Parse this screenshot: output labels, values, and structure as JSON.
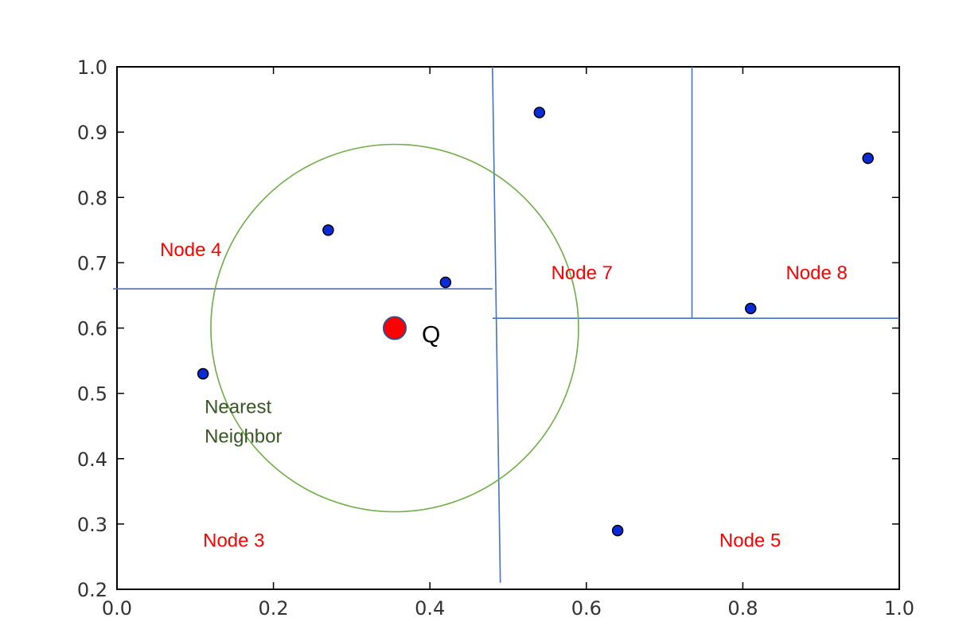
{
  "chart_data": {
    "type": "scatter",
    "xlim": [
      0.0,
      1.0
    ],
    "ylim": [
      0.2,
      1.0
    ],
    "x_ticks": [
      "0.0",
      "0.2",
      "0.4",
      "0.6",
      "0.8",
      "1.0"
    ],
    "y_ticks": [
      "0.2",
      "0.3",
      "0.4",
      "0.5",
      "0.6",
      "0.7",
      "0.8",
      "0.9",
      "1.0"
    ],
    "grid": false,
    "points": [
      {
        "x": 0.11,
        "y": 0.53
      },
      {
        "x": 0.27,
        "y": 0.75
      },
      {
        "x": 0.42,
        "y": 0.67
      },
      {
        "x": 0.54,
        "y": 0.93
      },
      {
        "x": 0.64,
        "y": 0.29
      },
      {
        "x": 0.81,
        "y": 0.63
      },
      {
        "x": 0.96,
        "y": 0.86
      }
    ],
    "query": {
      "x": 0.355,
      "y": 0.6,
      "label": "Q"
    },
    "search_radius": 0.235,
    "splits": [
      {
        "x1": -0.005,
        "y1": 0.66,
        "x2": 0.48,
        "y2": 0.66
      },
      {
        "x1": 0.48,
        "y1": 1.0,
        "x2": 0.49,
        "y2": 0.21
      },
      {
        "x1": 0.48,
        "y1": 0.615,
        "x2": 1.0,
        "y2": 0.615
      },
      {
        "x1": 0.735,
        "y1": 1.0,
        "x2": 0.735,
        "y2": 0.615
      }
    ],
    "region_labels": [
      {
        "text": "Node 4",
        "x": 0.055,
        "y": 0.71
      },
      {
        "text": "Node 7",
        "x": 0.555,
        "y": 0.675
      },
      {
        "text": "Node 8",
        "x": 0.855,
        "y": 0.675
      },
      {
        "text": "Node 3",
        "x": 0.11,
        "y": 0.265
      },
      {
        "text": "Node 5",
        "x": 0.77,
        "y": 0.265
      }
    ],
    "nearest_neighbor_label": [
      "Nearest",
      "Neighbor"
    ],
    "colors": {
      "point": "#0a2bd8",
      "query": "#ff0000",
      "split_line": "#4472c4",
      "circle": "#70ad47",
      "region_label": "#ff0000",
      "nn_label": "#375623"
    }
  }
}
